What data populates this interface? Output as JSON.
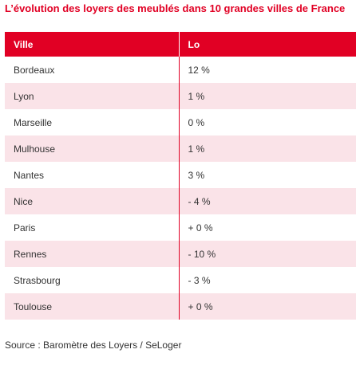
{
  "title": "L’évolution des loyers des meublés dans 10 grandes villes de France",
  "colors": {
    "accent": "#e10024",
    "title": "#e10024",
    "row_alt": "#fae3e8",
    "row_plain": "#ffffff",
    "text": "#333333"
  },
  "table": {
    "headers": [
      "Ville",
      "Lo"
    ],
    "rows": [
      {
        "city": "Bordeaux",
        "value": "12 %"
      },
      {
        "city": "Lyon",
        "value": "1 %"
      },
      {
        "city": "Marseille",
        "value": "0 %"
      },
      {
        "city": "Mulhouse",
        "value": "1 %"
      },
      {
        "city": "Nantes",
        "value": "3 %"
      },
      {
        "city": "Nice",
        "value": "- 4 %"
      },
      {
        "city": "Paris",
        "value": "+ 0 %"
      },
      {
        "city": "Rennes",
        "value": "- 10 %"
      },
      {
        "city": "Strasbourg",
        "value": "- 3 %"
      },
      {
        "city": "Toulouse",
        "value": "+ 0 %"
      }
    ]
  },
  "source": "Source : Baromètre des Loyers / SeLoger"
}
